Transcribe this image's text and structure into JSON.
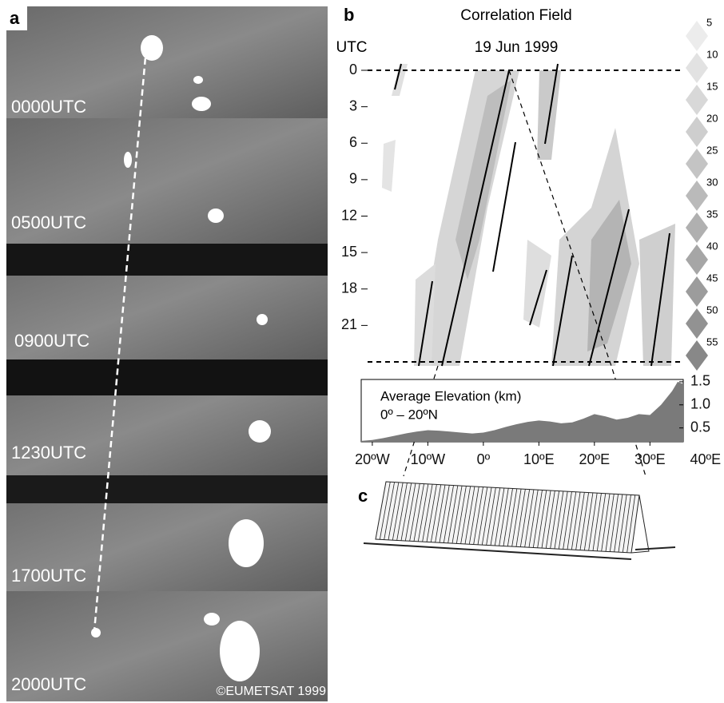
{
  "panel_a": {
    "label": "a",
    "frames": [
      "0000UTC",
      "0500UTC",
      "0900UTC",
      "1230UTC",
      "1700UTC",
      "2000UTC"
    ],
    "credit": "©EUMETSAT 1999"
  },
  "panel_b": {
    "label": "b",
    "title": "Correlation Field",
    "date": "19 Jun 1999",
    "y_axis_label": "UTC",
    "ylim": [
      0,
      24
    ],
    "yticks": [
      0,
      3,
      6,
      9,
      12,
      15,
      18,
      21
    ],
    "color_scale": {
      "labels": [
        5,
        10,
        15,
        20,
        25,
        30,
        35,
        40,
        45,
        50,
        55
      ],
      "colors": [
        "#ececec",
        "#e2e2e2",
        "#d8d8d8",
        "#cecece",
        "#c4c4c4",
        "#bababa",
        "#b0b0b0",
        "#a6a6a6",
        "#9c9c9c",
        "#929292",
        "#888888"
      ]
    }
  },
  "elevation": {
    "title": "Average Elevation (km)",
    "subtitle": "0º – 20ºN",
    "color": "#7a7a7a",
    "x": [
      -22,
      -20,
      -18,
      -16,
      -14,
      -12,
      -10,
      -8,
      -6,
      -4,
      -2,
      0,
      2,
      4,
      6,
      8,
      10,
      12,
      14,
      16,
      18,
      20,
      22,
      24,
      26,
      28,
      30,
      32,
      34,
      35,
      36
    ],
    "values": [
      0.22,
      0.24,
      0.28,
      0.33,
      0.38,
      0.42,
      0.45,
      0.44,
      0.42,
      0.4,
      0.38,
      0.4,
      0.45,
      0.52,
      0.58,
      0.63,
      0.66,
      0.64,
      0.6,
      0.62,
      0.7,
      0.8,
      0.75,
      0.68,
      0.72,
      0.8,
      0.78,
      1.0,
      1.3,
      1.5,
      1.45
    ],
    "xlim": [
      -22,
      36
    ],
    "ylim": [
      0.2,
      1.55
    ],
    "yticks": [
      1.5,
      {
        "value": 1,
        "label": "1.0"
      },
      0.5
    ],
    "xticks": [
      {
        "value": -20,
        "label": "20ºW"
      },
      {
        "value": -10,
        "label": "10ºW"
      },
      {
        "value": 0,
        "label": "0º"
      },
      {
        "value": 10,
        "label": "10ºE"
      },
      {
        "value": 20,
        "label": "20ºE"
      },
      {
        "value": 30,
        "label": "30ºE"
      },
      {
        "value": 40,
        "label": "40ºE"
      }
    ]
  },
  "panel_c": {
    "label": "c"
  }
}
